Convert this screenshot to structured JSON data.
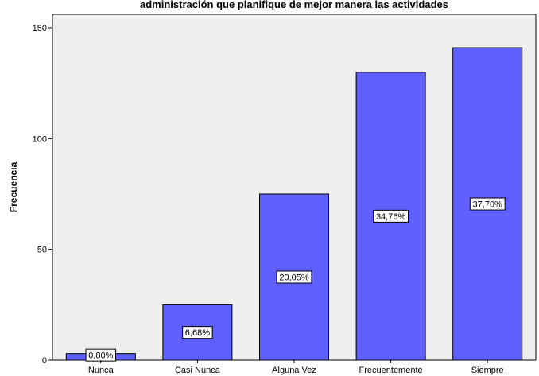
{
  "chart_data": {
    "type": "bar",
    "title": "administración que planifique de mejor manera las actividades",
    "xlabel": "",
    "ylabel": "Frecuencia",
    "categories": [
      "Nunca",
      "Casi Nunca",
      "Alguna Vez",
      "Frecuentemente",
      "Siempre"
    ],
    "values": [
      3,
      25,
      75,
      130,
      141
    ],
    "data_labels": [
      "0,80%",
      "6,68%",
      "20,05%",
      "34,76%",
      "37,70%"
    ],
    "ylim": [
      0,
      150
    ],
    "yticks": [
      0,
      50,
      100,
      150
    ],
    "grid": false,
    "legend": "none",
    "colors": {
      "bar": "#5f5ffb",
      "bar_outline": "#000000",
      "plot_background": "#efefef",
      "label_box": "#ffffff"
    }
  }
}
